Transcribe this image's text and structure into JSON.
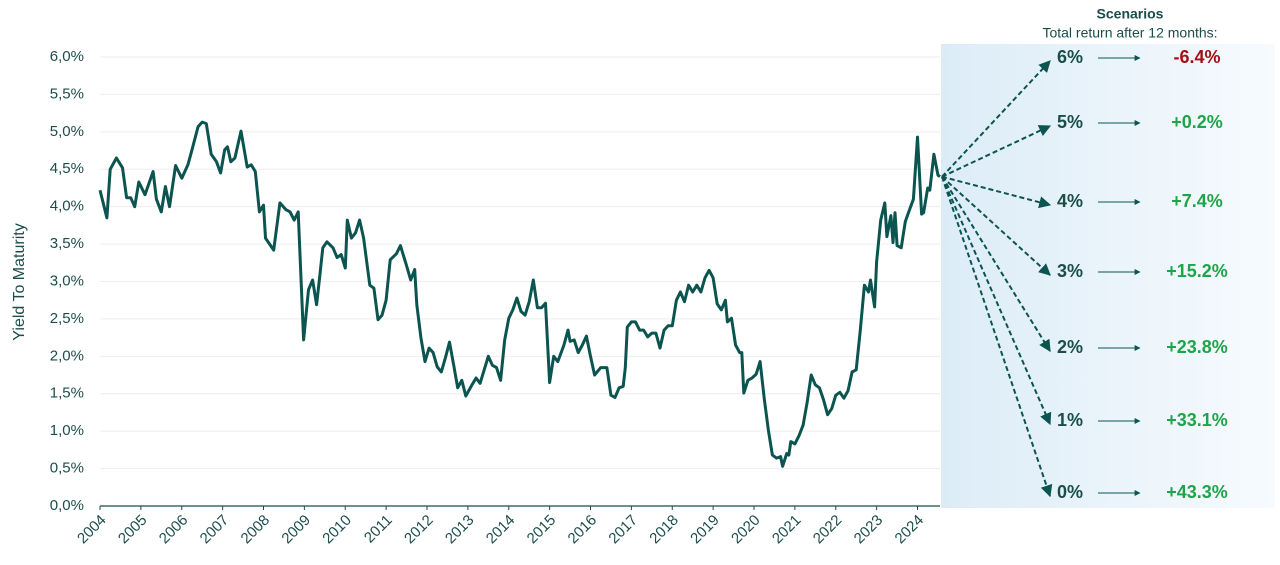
{
  "chart_data": {
    "type": "line",
    "y_label": "Yield To Maturity",
    "color": "#0b5450",
    "grid": true,
    "xlim": [
      2004,
      2024.55
    ],
    "xticks": [
      2004,
      2005,
      2006,
      2007,
      2008,
      2009,
      2010,
      2011,
      2012,
      2013,
      2014,
      2015,
      2016,
      2017,
      2018,
      2019,
      2020,
      2021,
      2022,
      2023,
      2024
    ],
    "ylim": [
      0,
      6
    ],
    "yticks": [
      {
        "value": 0,
        "label": "0,0%"
      },
      {
        "value": 0.5,
        "label": "0,5%"
      },
      {
        "value": 1,
        "label": "1,0%"
      },
      {
        "value": 1.5,
        "label": "1,5%"
      },
      {
        "value": 2,
        "label": "2,0%"
      },
      {
        "value": 2.5,
        "label": "2,5%"
      },
      {
        "value": 3,
        "label": "3,0%"
      },
      {
        "value": 3.5,
        "label": "3,5%"
      },
      {
        "value": 4,
        "label": "4,0%"
      },
      {
        "value": 4.5,
        "label": "4,5%"
      },
      {
        "value": 5,
        "label": "5,0%"
      },
      {
        "value": 5.5,
        "label": "5,5%"
      },
      {
        "value": 6,
        "label": "6,0%"
      }
    ],
    "x": [
      2004.0,
      2004.17,
      2004.25,
      2004.4,
      2004.55,
      2004.65,
      2004.75,
      2004.85,
      2004.95,
      2005.1,
      2005.3,
      2005.38,
      2005.5,
      2005.6,
      2005.7,
      2005.85,
      2006.0,
      2006.15,
      2006.25,
      2006.4,
      2006.5,
      2006.6,
      2006.72,
      2006.85,
      2006.95,
      2007.05,
      2007.12,
      2007.2,
      2007.3,
      2007.45,
      2007.6,
      2007.7,
      2007.8,
      2007.9,
      2008.0,
      2008.05,
      2008.25,
      2008.4,
      2008.55,
      2008.65,
      2008.75,
      2008.85,
      2008.98,
      2009.1,
      2009.2,
      2009.3,
      2009.38,
      2009.45,
      2009.55,
      2009.7,
      2009.8,
      2009.9,
      2010.0,
      2010.05,
      2010.15,
      2010.25,
      2010.35,
      2010.45,
      2010.6,
      2010.7,
      2010.8,
      2010.9,
      2011.0,
      2011.1,
      2011.25,
      2011.35,
      2011.5,
      2011.6,
      2011.7,
      2011.75,
      2011.85,
      2011.95,
      2012.05,
      2012.15,
      2012.25,
      2012.35,
      2012.45,
      2012.55,
      2012.65,
      2012.75,
      2012.85,
      2012.95,
      2013.1,
      2013.2,
      2013.3,
      2013.4,
      2013.5,
      2013.6,
      2013.7,
      2013.8,
      2013.9,
      2014.0,
      2014.1,
      2014.2,
      2014.3,
      2014.4,
      2014.5,
      2014.6,
      2014.7,
      2014.8,
      2014.9,
      2015.0,
      2015.1,
      2015.2,
      2015.35,
      2015.45,
      2015.5,
      2015.6,
      2015.7,
      2015.8,
      2015.9,
      2016.0,
      2016.1,
      2016.25,
      2016.4,
      2016.5,
      2016.6,
      2016.7,
      2016.8,
      2016.85,
      2016.9,
      2017.0,
      2017.1,
      2017.2,
      2017.3,
      2017.4,
      2017.5,
      2017.6,
      2017.7,
      2017.8,
      2017.9,
      2018.0,
      2018.1,
      2018.2,
      2018.3,
      2018.4,
      2018.5,
      2018.6,
      2018.7,
      2018.8,
      2018.9,
      2019.0,
      2019.1,
      2019.2,
      2019.3,
      2019.35,
      2019.45,
      2019.55,
      2019.65,
      2019.7,
      2019.75,
      2019.85,
      2019.95,
      2020.05,
      2020.15,
      2020.25,
      2020.35,
      2020.45,
      2020.55,
      2020.65,
      2020.7,
      2020.8,
      2020.85,
      2020.9,
      2021.0,
      2021.1,
      2021.2,
      2021.3,
      2021.4,
      2021.5,
      2021.6,
      2021.7,
      2021.8,
      2021.9,
      2022.0,
      2022.1,
      2022.2,
      2022.3,
      2022.4,
      2022.5,
      2022.6,
      2022.7,
      2022.8,
      2022.85,
      2022.95,
      2023.0,
      2023.1,
      2023.2,
      2023.25,
      2023.35,
      2023.4,
      2023.45,
      2023.5,
      2023.6,
      2023.7,
      2023.8,
      2023.9,
      2024.0,
      2024.1,
      2024.15,
      2024.25,
      2024.3,
      2024.4,
      2024.5,
      2024.55
    ],
    "values": [
      4.22,
      3.85,
      4.5,
      4.65,
      4.52,
      4.12,
      4.12,
      4.0,
      4.33,
      4.16,
      4.47,
      4.1,
      3.93,
      4.27,
      4.0,
      4.55,
      4.38,
      4.56,
      4.76,
      5.07,
      5.13,
      5.11,
      4.7,
      4.6,
      4.45,
      4.76,
      4.8,
      4.6,
      4.65,
      5.01,
      4.53,
      4.56,
      4.47,
      3.93,
      4.02,
      3.58,
      3.42,
      4.05,
      3.96,
      3.93,
      3.82,
      3.93,
      2.22,
      2.89,
      3.02,
      2.69,
      3.09,
      3.45,
      3.53,
      3.45,
      3.32,
      3.36,
      3.18,
      3.82,
      3.58,
      3.65,
      3.82,
      3.58,
      2.95,
      2.91,
      2.49,
      2.55,
      2.75,
      3.29,
      3.37,
      3.48,
      3.21,
      3.02,
      3.16,
      2.69,
      2.25,
      1.93,
      2.11,
      2.05,
      1.86,
      1.79,
      1.98,
      2.19,
      1.89,
      1.58,
      1.68,
      1.47,
      1.62,
      1.71,
      1.64,
      1.82,
      2.0,
      1.88,
      1.85,
      1.68,
      2.22,
      2.51,
      2.62,
      2.78,
      2.6,
      2.55,
      2.73,
      3.02,
      2.65,
      2.65,
      2.71,
      1.65,
      2.0,
      1.93,
      2.15,
      2.35,
      2.2,
      2.22,
      2.05,
      2.15,
      2.27,
      2.0,
      1.75,
      1.85,
      1.85,
      1.48,
      1.45,
      1.58,
      1.6,
      1.85,
      2.39,
      2.46,
      2.46,
      2.35,
      2.35,
      2.26,
      2.31,
      2.31,
      2.11,
      2.35,
      2.41,
      2.41,
      2.75,
      2.86,
      2.73,
      2.95,
      2.86,
      2.95,
      2.86,
      3.05,
      3.15,
      3.05,
      2.7,
      2.62,
      2.75,
      2.46,
      2.51,
      2.15,
      2.05,
      2.05,
      1.51,
      1.68,
      1.71,
      1.76,
      1.93,
      1.44,
      1.02,
      0.68,
      0.64,
      0.66,
      0.53,
      0.7,
      0.68,
      0.86,
      0.83,
      0.94,
      1.08,
      1.39,
      1.75,
      1.62,
      1.58,
      1.42,
      1.22,
      1.3,
      1.48,
      1.52,
      1.44,
      1.54,
      1.79,
      1.82,
      2.35,
      2.95,
      2.86,
      3.02,
      2.66,
      3.26,
      3.82,
      4.05,
      3.6,
      3.88,
      3.52,
      3.92,
      3.48,
      3.45,
      3.8,
      3.95,
      4.1,
      4.93,
      3.9,
      3.92,
      4.25,
      4.22,
      4.7,
      4.42,
      4.4
    ],
    "scenarios": {
      "title": "Scenarios",
      "subtitle": "Total return after 12 months:",
      "yields": [
        "6%",
        "5%",
        "4%",
        "3%",
        "2%",
        "1%",
        "0%"
      ],
      "returns": [
        -6.4,
        0.2,
        7.4,
        15.2,
        23.8,
        33.1,
        43.3
      ],
      "value_labels": [
        "-6.4%",
        "+0.2%",
        "+7.4%",
        "+15.2%",
        "+23.8%",
        "+33.1%",
        "+43.3%"
      ],
      "negative_color": "#a50f15",
      "positive_color": "#1fa44a",
      "arrow_color": "#0b5450"
    }
  }
}
